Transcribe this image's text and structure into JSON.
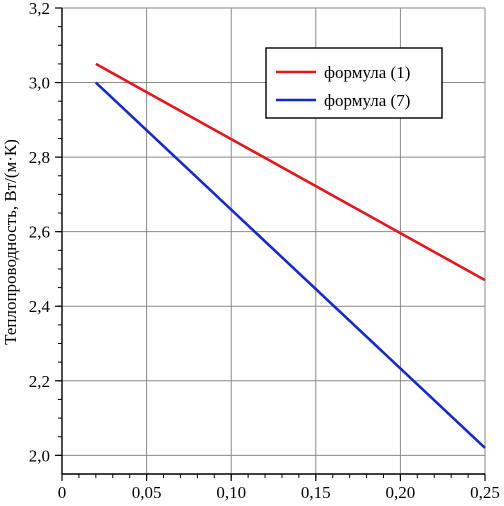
{
  "chart_data": {
    "type": "line",
    "title": "",
    "xlabel": "",
    "ylabel": "Теплопроводность, Вт/(м·К)",
    "xlim": [
      0,
      0.25
    ],
    "ylim": [
      1.95,
      3.2
    ],
    "x_ticks": [
      {
        "value": 0,
        "label": "0"
      },
      {
        "value": 0.05,
        "label": "0,05"
      },
      {
        "value": 0.1,
        "label": "0,10"
      },
      {
        "value": 0.15,
        "label": "0,15"
      },
      {
        "value": 0.2,
        "label": "0,20"
      },
      {
        "value": 0.25,
        "label": "0,25"
      }
    ],
    "y_ticks": [
      {
        "value": 2.0,
        "label": "2,0"
      },
      {
        "value": 2.2,
        "label": "2,2"
      },
      {
        "value": 2.4,
        "label": "2,4"
      },
      {
        "value": 2.6,
        "label": "2,6"
      },
      {
        "value": 2.8,
        "label": "2,8"
      },
      {
        "value": 3.0,
        "label": "3,0"
      },
      {
        "value": 3.2,
        "label": "3,2"
      }
    ],
    "grid": true,
    "legend_position": "top-right",
    "series": [
      {
        "name": "формула (1)",
        "color": "#e8141c",
        "x": [
          0.02,
          0.25
        ],
        "y": [
          3.05,
          2.47
        ]
      },
      {
        "name": "формула (7)",
        "color": "#1428d2",
        "x": [
          0.02,
          0.25
        ],
        "y": [
          3.0,
          2.02
        ]
      }
    ]
  }
}
